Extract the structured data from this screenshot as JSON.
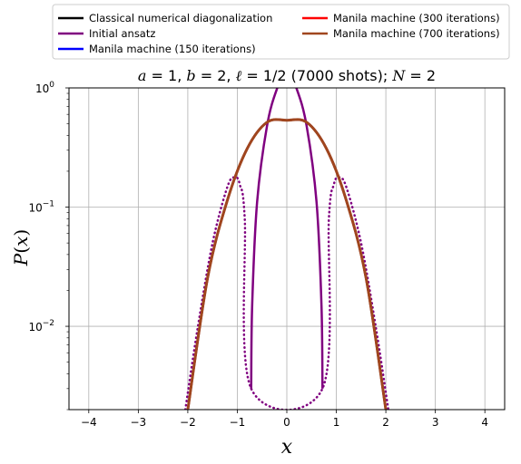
{
  "chart_data": {
    "type": "line",
    "title": "a = 1, b = 2, ℓ = 1/2 (7000 shots); N = 2",
    "xlabel": "x",
    "ylabel": "P(x)",
    "xlim": [
      -4.4,
      4.4
    ],
    "ylim": [
      0.002,
      1.0
    ],
    "yscale": "log",
    "grid": true,
    "legend_position": "top",
    "x_ticks": [
      "−4",
      "−3",
      "−2",
      "−1",
      "0",
      "1",
      "2",
      "3",
      "4"
    ],
    "y_ticks": [
      {
        "value": 1.0,
        "base": "10",
        "exp": "0"
      },
      {
        "value": 0.1,
        "base": "10",
        "exp": "−1"
      },
      {
        "value": 0.01,
        "base": "10",
        "exp": "−2"
      }
    ],
    "series": [
      {
        "name": "Classical numerical diagonalization",
        "color": "#000000",
        "style": "solid",
        "x": [
          -2.0,
          -1.6,
          -1.2,
          -0.8,
          -0.4,
          0.0,
          0.4,
          0.8,
          1.2,
          1.6,
          2.0
        ],
        "y": [
          0.002,
          0.0255,
          0.1145,
          0.3097,
          0.515,
          0.535,
          0.515,
          0.3097,
          0.1145,
          0.0255,
          0.002
        ]
      },
      {
        "name": "Initial ansatz",
        "color": "#800080",
        "style": "solid",
        "x": [
          -0.72,
          -0.7,
          -0.6,
          -0.4,
          -0.2,
          0.0,
          0.2,
          0.4,
          0.6,
          0.7,
          0.72
        ],
        "y": [
          0.003,
          0.015,
          0.1105,
          0.48,
          0.98,
          1.4,
          0.98,
          0.48,
          0.1105,
          0.015,
          0.003
        ]
      },
      {
        "name": "Initial ansatz (dotted tails)",
        "color": "#800080",
        "style": "dotted",
        "x": [
          -2.05,
          -1.8,
          -1.5,
          -1.2,
          -1.05,
          -0.95,
          -0.85,
          -0.72,
          0.72,
          0.85,
          0.95,
          1.05,
          1.2,
          1.5,
          1.8,
          2.05
        ],
        "y": [
          0.002,
          0.0097,
          0.05,
          0.148,
          0.178,
          0.155,
          0.08,
          0.003,
          0.003,
          0.08,
          0.155,
          0.178,
          0.148,
          0.05,
          0.0097,
          0.002
        ]
      },
      {
        "name": "Manila machine (150 iterations)",
        "color": "#0000ff",
        "style": "solid",
        "x": [
          -2.0,
          -1.6,
          -1.2,
          -0.8,
          -0.4,
          0.0,
          0.4,
          0.8,
          1.2,
          1.6,
          2.0
        ],
        "y": [
          0.002,
          0.0255,
          0.1145,
          0.3097,
          0.515,
          0.535,
          0.515,
          0.3097,
          0.1145,
          0.0255,
          0.002
        ]
      },
      {
        "name": "Manila machine (300 iterations)",
        "color": "#ff0000",
        "style": "solid",
        "x": [
          -2.0,
          -1.6,
          -1.2,
          -0.8,
          -0.4,
          0.0,
          0.4,
          0.8,
          1.2,
          1.6,
          2.0
        ],
        "y": [
          0.002,
          0.0255,
          0.1145,
          0.3097,
          0.515,
          0.535,
          0.515,
          0.3097,
          0.1145,
          0.0255,
          0.002
        ]
      },
      {
        "name": "Manila machine (700 iterations)",
        "color": "#a0461e",
        "style": "solid",
        "x": [
          -2.0,
          -1.6,
          -1.2,
          -0.8,
          -0.4,
          0.0,
          0.4,
          0.8,
          1.2,
          1.6,
          2.0
        ],
        "y": [
          0.002,
          0.0255,
          0.1145,
          0.3097,
          0.515,
          0.535,
          0.515,
          0.3097,
          0.1145,
          0.0255,
          0.002
        ]
      }
    ]
  }
}
